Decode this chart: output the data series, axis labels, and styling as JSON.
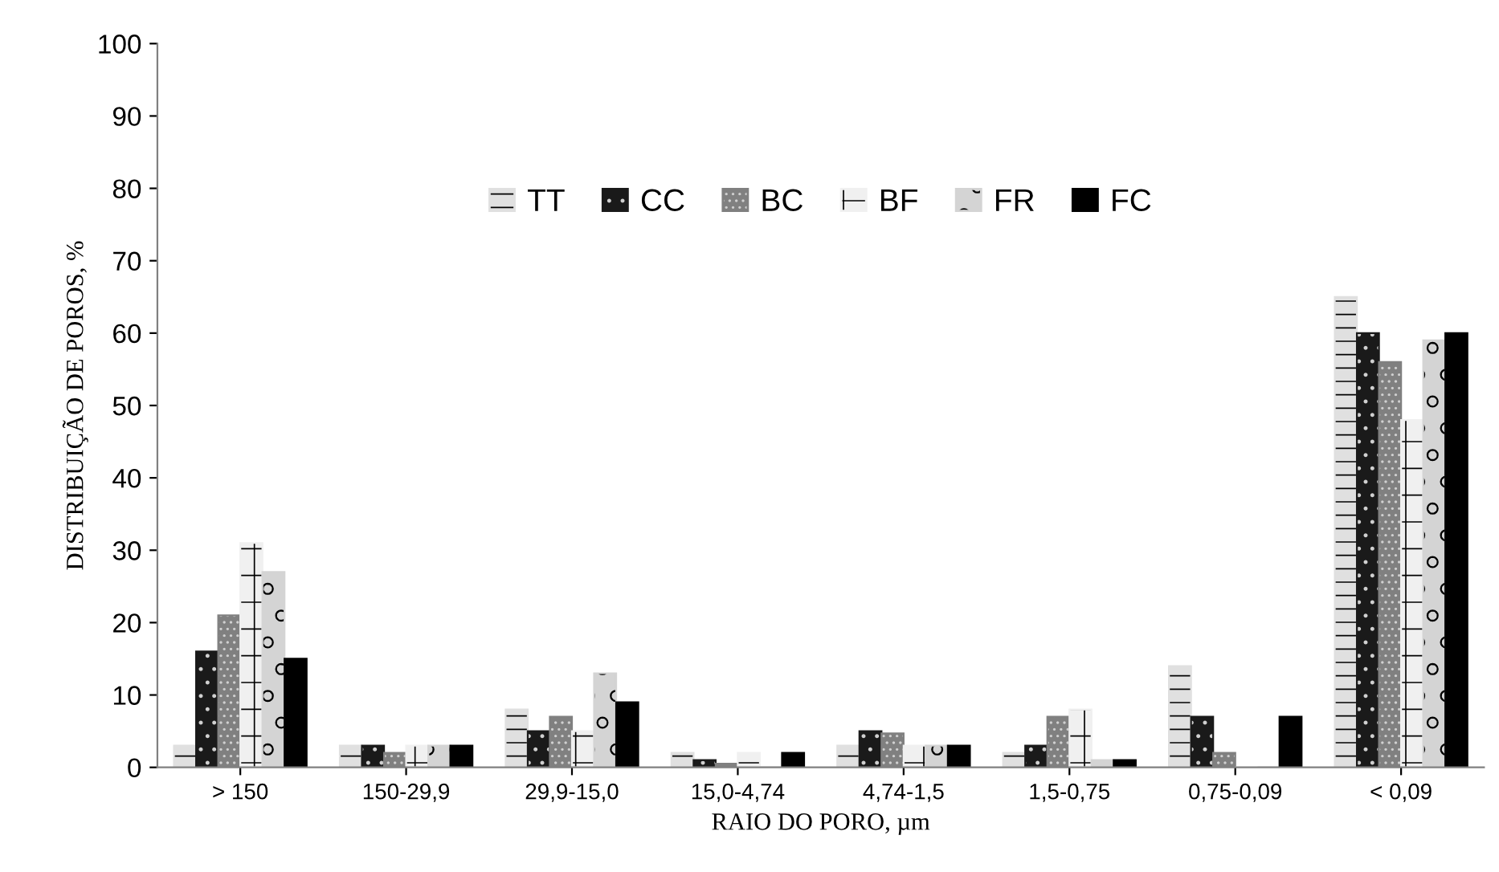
{
  "chart_data": {
    "type": "bar",
    "xlabel": "RAIO DO PORO, µm",
    "ylabel": "DISTRIBUIÇÃO DE POROS, %",
    "categories": [
      "> 150",
      "150-29,9",
      "29,9-15,0",
      "15,0-4,74",
      "4,74-1,5",
      "1,5-0,75",
      "0,75-0,09",
      "< 0,09"
    ],
    "series": [
      {
        "name": "TT",
        "color": "#e0e0e0",
        "values": [
          3,
          3,
          8,
          2,
          3,
          2,
          14,
          65
        ]
      },
      {
        "name": "CC",
        "color": "#1a1a1a",
        "values": [
          16,
          3,
          5,
          1,
          5,
          3,
          7,
          60
        ]
      },
      {
        "name": "BC",
        "color": "#808080",
        "values": [
          21,
          2,
          7,
          0.5,
          4.7,
          7,
          2,
          56
        ]
      },
      {
        "name": "BF",
        "color": "#f0f0f0",
        "values": [
          31,
          3,
          5,
          2,
          3,
          8,
          0,
          48
        ]
      },
      {
        "name": "FR",
        "color": "#d4d4d4",
        "values": [
          27,
          3,
          13,
          0,
          3,
          1,
          0,
          59
        ]
      },
      {
        "name": "FC",
        "color": "#000000",
        "values": [
          15,
          3,
          9,
          2,
          3,
          1,
          7,
          60
        ]
      }
    ],
    "ylim": [
      0,
      100
    ],
    "yticks": [
      0,
      10,
      20,
      30,
      40,
      50,
      60,
      70,
      80,
      90,
      100
    ],
    "grid": false,
    "legend": "top"
  }
}
